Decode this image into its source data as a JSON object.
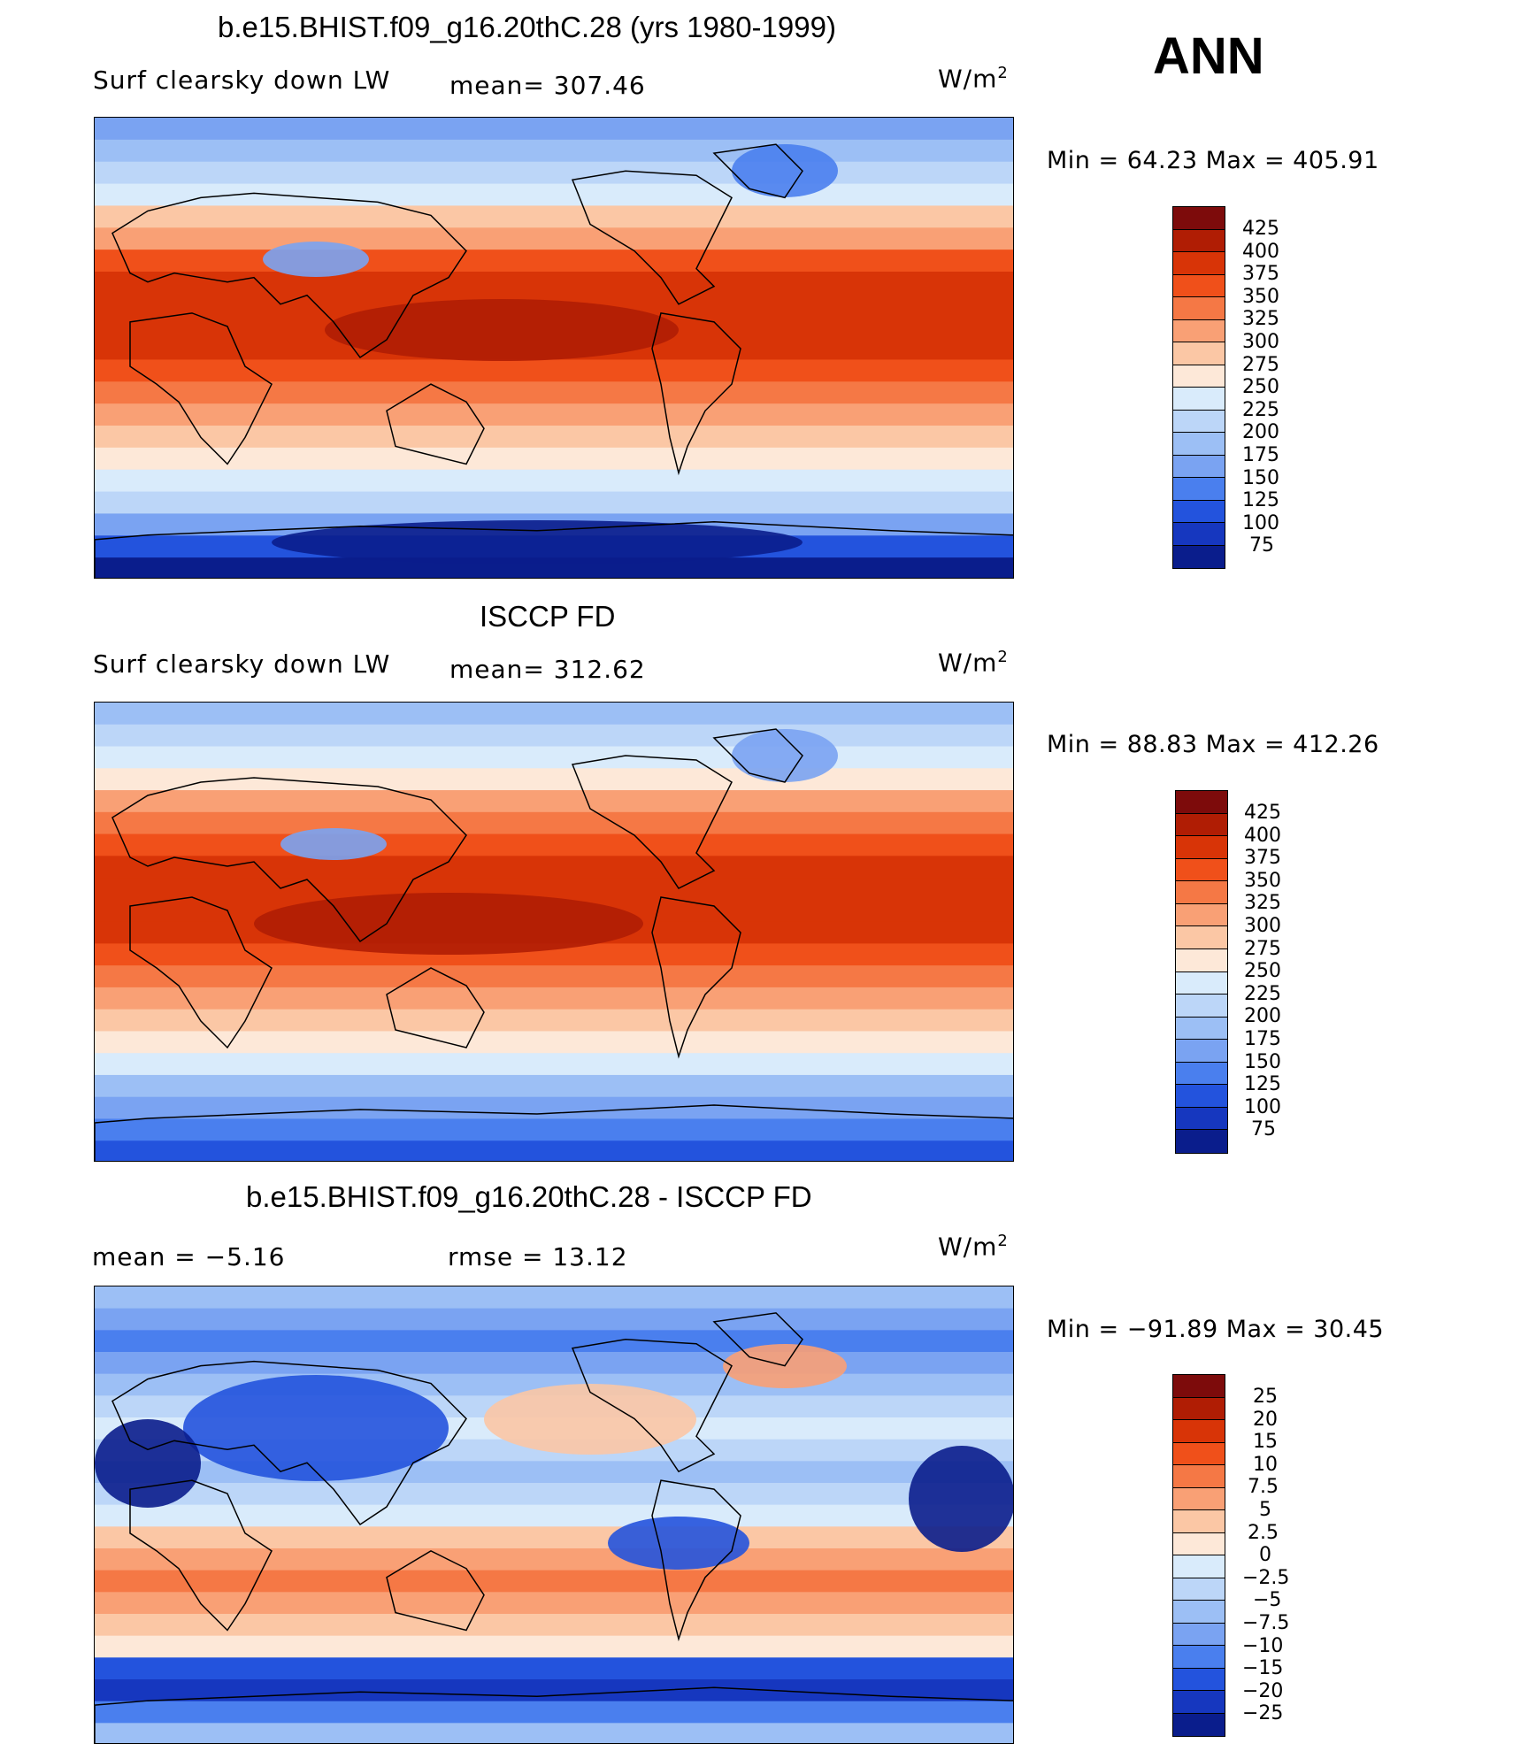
{
  "main_title": "b.e15.BHIST.f09_g16.20thC.28 (yrs 1980-1999)",
  "season": "ANN",
  "panels": [
    {
      "id": "model",
      "title": "b.e15.BHIST.f09_g16.20thC.28 (yrs 1980-1999)",
      "variable": "Surf clearsky down LW",
      "stat": "mean= 307.46",
      "units": "W/m",
      "units_sup": "2",
      "minmax": "Min =   64.23 Max = 405.91",
      "colorbar_labels": [
        "425",
        "400",
        "375",
        "350",
        "325",
        "300",
        "275",
        "250",
        "225",
        "200",
        "175",
        "150",
        "125",
        "100",
        "75"
      ]
    },
    {
      "id": "obs",
      "title": "ISCCP FD",
      "variable": "Surf clearsky down LW",
      "stat": "mean= 312.62",
      "units": "W/m",
      "units_sup": "2",
      "minmax": "Min =   88.83 Max = 412.26",
      "colorbar_labels": [
        "425",
        "400",
        "375",
        "350",
        "325",
        "300",
        "275",
        "250",
        "225",
        "200",
        "175",
        "150",
        "125",
        "100",
        "75"
      ]
    },
    {
      "id": "diff",
      "title": "b.e15.BHIST.f09_g16.20thC.28 - ISCCP FD",
      "stat_left": "mean =   −5.16",
      "stat_right": "rmse =   13.12",
      "units": "W/m",
      "units_sup": "2",
      "minmax": "Min = −91.89 Max =   30.45",
      "colorbar_labels": [
        "25",
        "20",
        "15",
        "10",
        "7.5",
        "5",
        "2.5",
        "0",
        "−2.5",
        "−5",
        "−7.5",
        "−10",
        "−15",
        "−20",
        "−25"
      ]
    }
  ],
  "colors": {
    "palette": [
      "#7d0b0b",
      "#b01d04",
      "#d83407",
      "#f0501a",
      "#f57845",
      "#f9a075",
      "#fbc7a5",
      "#fde8d8",
      "#d9ebfb",
      "#bcd6f8",
      "#9cbff5",
      "#7aa3f2",
      "#4a7fee",
      "#2353dd",
      "#1637bf",
      "#0a1d8c"
    ],
    "land_outline": "#000000"
  }
}
